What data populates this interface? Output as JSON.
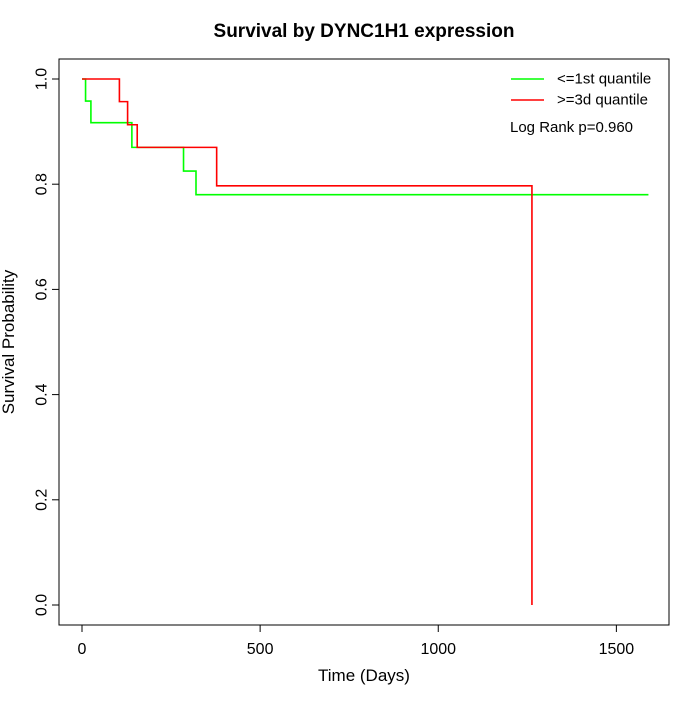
{
  "chart_data": {
    "type": "line",
    "title": "Survival by DYNC1H1 expression",
    "xlabel": "Time (Days)",
    "ylabel": "Survival Probability",
    "xlim": [
      0,
      1600
    ],
    "ylim": [
      0,
      1.0
    ],
    "x_ticks": [
      0,
      500,
      1000,
      1500
    ],
    "y_ticks": [
      0.0,
      0.2,
      0.4,
      0.6,
      0.8,
      1.0
    ],
    "x_tick_labels": [
      "0",
      "500",
      "1000",
      "1500"
    ],
    "y_tick_labels": [
      "0.0",
      "0.2",
      "0.4",
      "0.6",
      "0.8",
      "1.0"
    ],
    "grid": false,
    "legend_position": "top-right",
    "annotation": "Log Rank p=0.960",
    "series": [
      {
        "name": "<=1st quantile",
        "color": "#00ff00",
        "steps": [
          [
            0,
            1.0
          ],
          [
            10,
            0.958
          ],
          [
            25,
            0.917
          ],
          [
            140,
            0.87
          ],
          [
            285,
            0.825
          ],
          [
            320,
            0.78
          ],
          [
            1590,
            0.78
          ]
        ]
      },
      {
        "name": ">=3d quantile",
        "color": "#ff0000",
        "steps": [
          [
            0,
            1.0
          ],
          [
            105,
            0.957
          ],
          [
            128,
            0.913
          ],
          [
            155,
            0.87
          ],
          [
            378,
            0.797
          ],
          [
            1263,
            0.0
          ]
        ]
      }
    ]
  }
}
